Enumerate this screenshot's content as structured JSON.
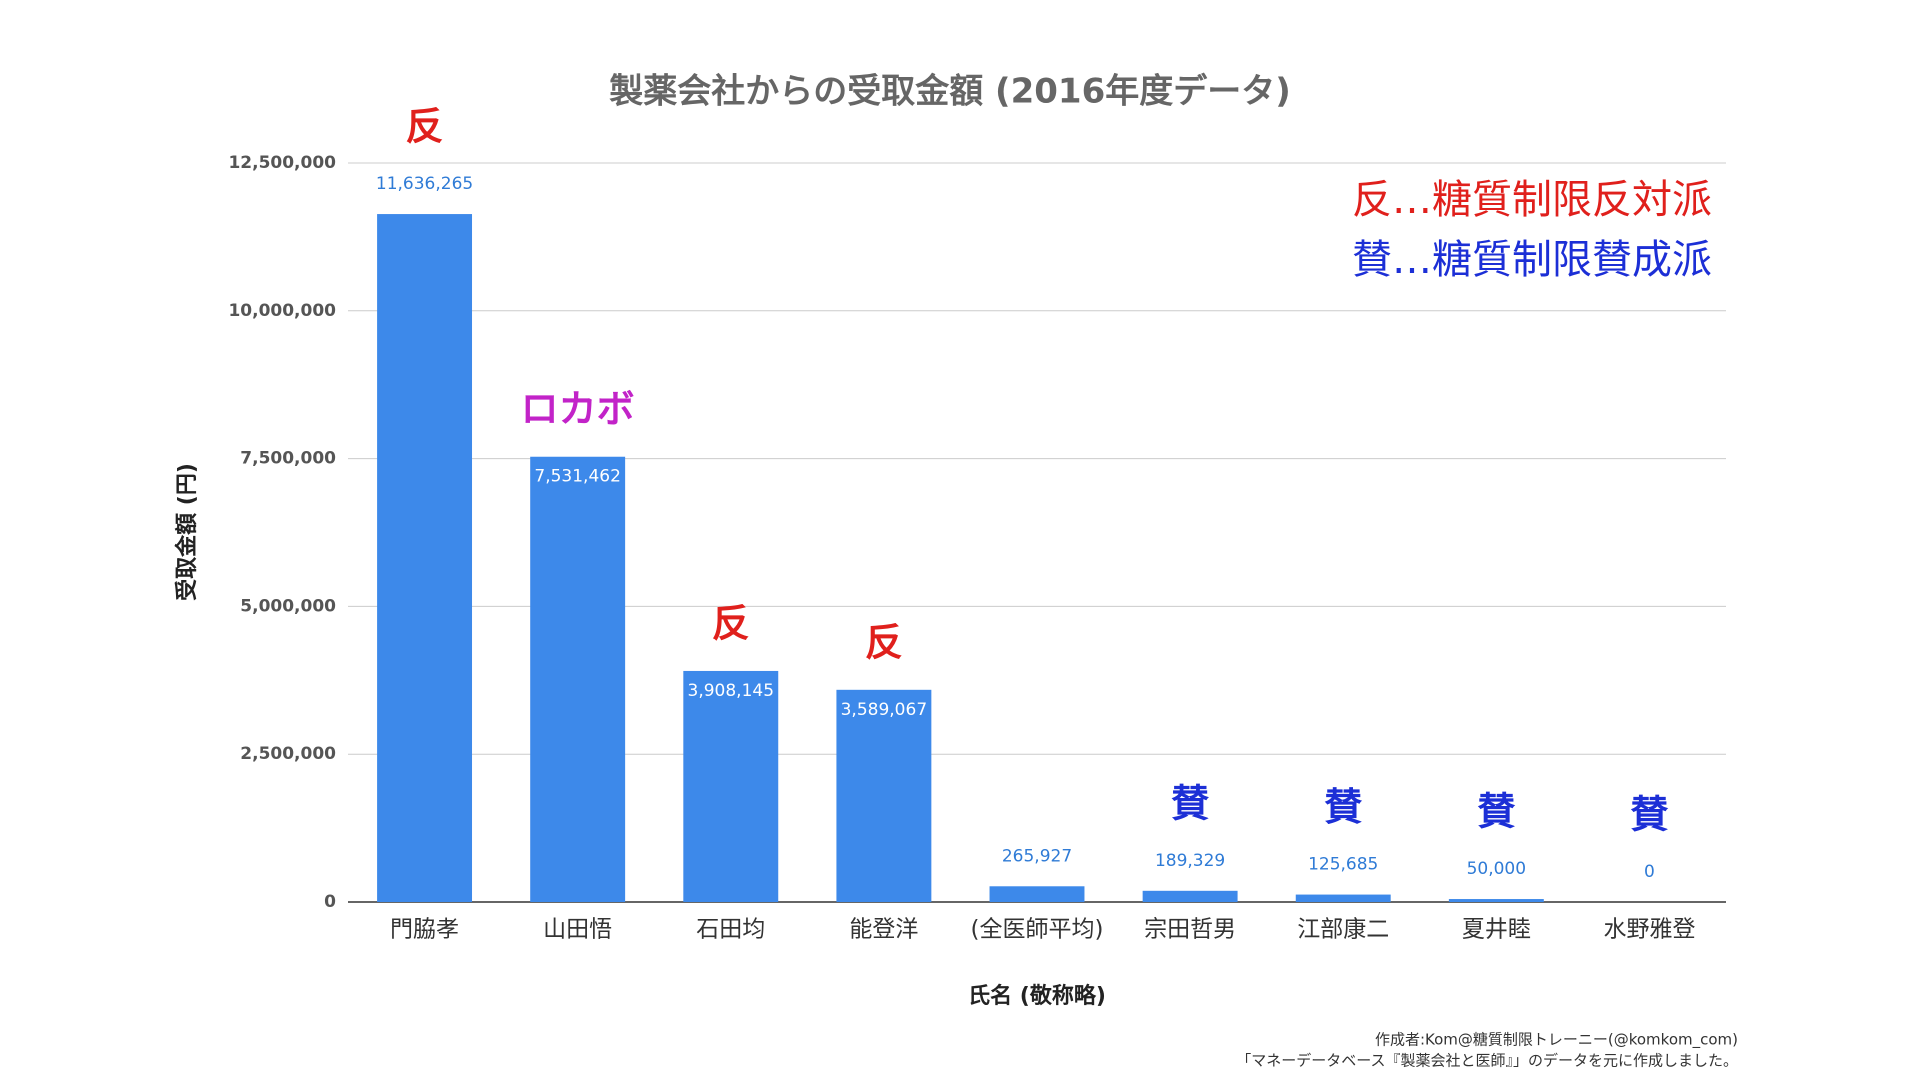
{
  "chart_data": {
    "type": "bar",
    "title": "製薬会社からの受取金額 (2016年度データ)",
    "x_label": "氏名 (敬称略)",
    "y_label": "受取金額 (円)",
    "categories": [
      "門脇孝",
      "山田悟",
      "石田均",
      "能登洋",
      "(全医師平均)",
      "宗田哲男",
      "江部康二",
      "夏井睦",
      "水野雅登"
    ],
    "values": [
      11636265,
      7531462,
      3908145,
      3589067,
      265927,
      189329,
      125685,
      50000,
      0
    ],
    "value_labels": [
      "11,636,265",
      "7,531,462",
      "3,908,145",
      "3,589,067",
      "265,927",
      "189,329",
      "125,685",
      "50,000",
      "0"
    ],
    "color": "#3d89ea",
    "ylim": [
      0,
      12500000
    ],
    "yticks": [
      0,
      {
        "value": 2500000,
        "label": "2,500,000"
      },
      {
        "value": 5000000,
        "label": "5,000,000"
      },
      {
        "value": 7500000,
        "label": "7,500,000"
      },
      {
        "value": 10000000,
        "label": "10,000,000"
      },
      {
        "value": 12500000,
        "label": "12,500,000"
      }
    ],
    "grid": true,
    "annotations": [
      {
        "text": "反",
        "color": "#e0201c"
      },
      {
        "text": "ロカボ",
        "color": "#c223c8"
      },
      {
        "text": "反",
        "color": "#e0201c"
      },
      {
        "text": "反",
        "color": "#e0201c"
      },
      null,
      {
        "text": "賛",
        "color": "#1c2fd6"
      },
      {
        "text": "賛",
        "color": "#1c2fd6"
      },
      {
        "text": "賛",
        "color": "#1c2fd6"
      },
      {
        "text": "賛",
        "color": "#1c2fd6"
      }
    ],
    "legend": [
      {
        "text": "反…糖質制限反対派",
        "color": "#e0201c"
      },
      {
        "text": "賛…糖質制限賛成派",
        "color": "#1c2fd6"
      }
    ],
    "credits": [
      "作成者:Kom@糖質制限トレーニー(@komkom_com)",
      "「マネーデータベース『製薬会社と医師』」のデータを元に作成しました。"
    ]
  }
}
